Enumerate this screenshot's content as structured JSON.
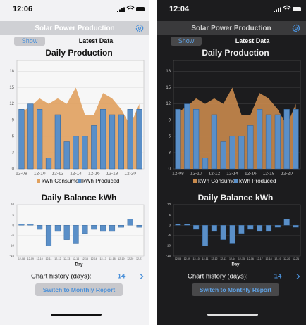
{
  "screens": [
    {
      "time": "12:06",
      "theme": "light",
      "header": {
        "title": "Solar Power Production"
      },
      "tabs": {
        "show": "Show",
        "latest": "Latest Data"
      },
      "production_chart": {
        "type": "bar",
        "title": "Daily Production",
        "categories": [
          "12-08",
          null,
          "12-10",
          null,
          "12-12",
          null,
          "12-14",
          null,
          "12-16",
          null,
          "12-18",
          null,
          "12-20",
          null
        ],
        "series": [
          {
            "name": "kWh Consumed",
            "type": "area",
            "color": "#e0a05e",
            "values": [
              10.5,
              11.5,
              13,
              12,
              13,
              12,
              15,
              10,
              10,
              14,
              13,
              11,
              8,
              12
            ]
          },
          {
            "name": "kWh Produced",
            "type": "bar",
            "color": "#5a8fc8",
            "values": [
              11,
              12,
              11,
              2,
              10,
              5,
              6,
              6,
              8,
              11,
              10,
              10,
              11,
              11
            ]
          }
        ],
        "ylim": [
          0,
          20
        ],
        "yticks": [
          0,
          3,
          6,
          9,
          12,
          15,
          18
        ]
      },
      "balance_chart": {
        "type": "bar",
        "title": "Daily Balance kWh",
        "categories": [
          "12-08",
          "12-09",
          "12-10",
          "12-11",
          "12-12",
          "12-13",
          "12-14",
          "12-15",
          "12-16",
          "12-17",
          "12-18",
          "12-19",
          "12-20",
          "12-21"
        ],
        "values": [
          0.5,
          0.5,
          -2,
          -10,
          -3,
          -7,
          -9,
          -4,
          -2,
          -3,
          -3,
          -1,
          3,
          -1
        ],
        "color": "#5a8fc8",
        "ylim": [
          -15,
          10
        ],
        "yticks": [
          -15,
          -10,
          -5,
          0,
          5,
          10
        ],
        "xlabel": "Day"
      },
      "history": {
        "label": "Chart history (days):",
        "value": 14
      },
      "button": "Switch to Monthly Report"
    },
    {
      "time": "12:04",
      "theme": "dark",
      "header": {
        "title": "Solar Power Production"
      },
      "tabs": {
        "show": "Show",
        "latest": "Latest Data"
      },
      "production_chart": {
        "type": "bar",
        "title": "Daily Production",
        "categories": [
          "12-08",
          null,
          "12-10",
          null,
          "12-12",
          null,
          "12-14",
          null,
          "12-16",
          null,
          "12-18",
          null,
          "12-20",
          null
        ],
        "series": [
          {
            "name": "kWh Consumed",
            "type": "area",
            "color": "#c98a4c",
            "values": [
              10.5,
              11.5,
              13,
              12,
              13,
              12,
              15,
              10,
              10,
              14,
              13,
              11,
              8,
              12
            ]
          },
          {
            "name": "kWh Produced",
            "type": "bar",
            "color": "#5a8fc8",
            "values": [
              11,
              12,
              11,
              2,
              10,
              5,
              6,
              6,
              8,
              11,
              10,
              10,
              11,
              11
            ]
          }
        ],
        "ylim": [
          0,
          20
        ],
        "yticks": [
          0,
          3,
          6,
          9,
          12,
          15,
          18
        ]
      },
      "balance_chart": {
        "type": "bar",
        "title": "Daily Balance kWh",
        "categories": [
          "12-08",
          "12-09",
          "12-10",
          "12-11",
          "12-12",
          "12-13",
          "12-14",
          "12-15",
          "12-16",
          "12-17",
          "12-18",
          "12-19",
          "12-20",
          "12-21"
        ],
        "values": [
          0.5,
          0.5,
          -2,
          -10,
          -3,
          -7,
          -9,
          -4,
          -2,
          -3,
          -3,
          -1,
          3,
          -1
        ],
        "color": "#5a8fc8",
        "ylim": [
          -15,
          10
        ],
        "yticks": [
          -15,
          -10,
          -5,
          0,
          5,
          10
        ],
        "xlabel": "Day"
      },
      "history": {
        "label": "Chart history (days):",
        "value": 14
      },
      "button": "Switch to Monthly Report"
    }
  ]
}
